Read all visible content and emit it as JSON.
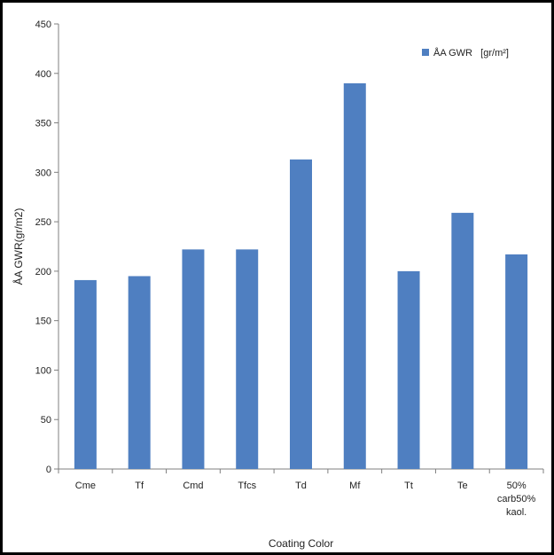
{
  "chart_data": {
    "type": "bar",
    "categories": [
      "Cme",
      "Tf",
      "Cmd",
      "Tfcs",
      "Td",
      "Mf",
      "Tt",
      "Te",
      "50% carb50% kaol."
    ],
    "category_lines": [
      [
        "Cme"
      ],
      [
        "Tf"
      ],
      [
        "Cmd"
      ],
      [
        "Tfcs"
      ],
      [
        "Td"
      ],
      [
        "Mf"
      ],
      [
        "Tt"
      ],
      [
        "Te"
      ],
      [
        "50%",
        "carb50%",
        "kaol."
      ]
    ],
    "series": [
      {
        "name": "ÅA GWR   [gr/m²]",
        "color": "#4f7fc1",
        "values": [
          191,
          195,
          222,
          222,
          313,
          390,
          200,
          259,
          217
        ]
      }
    ],
    "title": "",
    "xlabel": "Coating Color",
    "ylabel": "ÅA GWR(gr/m2)",
    "ylim": [
      0,
      450
    ],
    "yticks": [
      0,
      50,
      100,
      150,
      200,
      250,
      300,
      350,
      400,
      450
    ],
    "grid": false,
    "legend": "top-right"
  }
}
